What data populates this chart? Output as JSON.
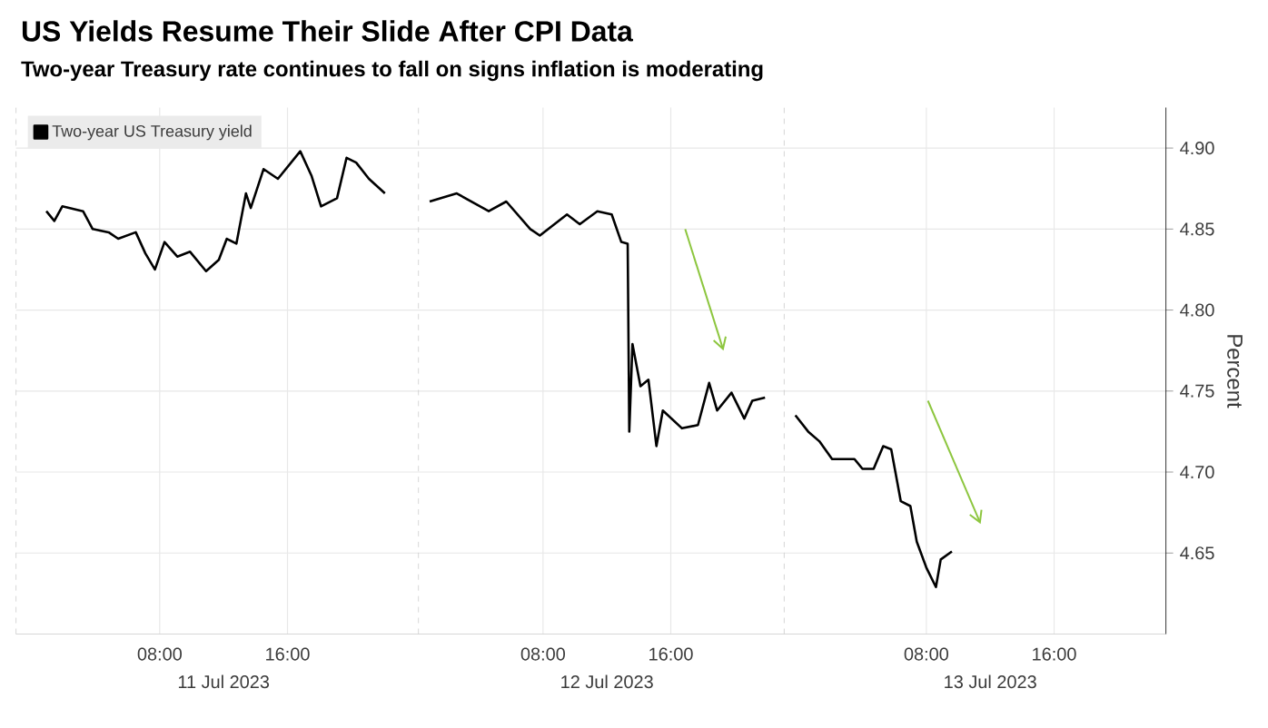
{
  "chart_data": {
    "type": "line",
    "title": "US Yields Resume Their Slide After CPI Data",
    "subtitle": "Two-year Treasury rate continues to fall on signs inflation is moderating",
    "ylabel": "Percent",
    "annotations": [
      "11 Jul 2023",
      "12 Jul 2023",
      "13 Jul 2023"
    ],
    "xlim": [
      "2023-07-10T23:00",
      "2023-07-13T23:00"
    ],
    "xticks": [
      {
        "value": "2023-07-11T08:00",
        "label": "08:00"
      },
      {
        "value": "2023-07-11T16:00",
        "label": "16:00"
      },
      {
        "value": "2023-07-12T08:00",
        "label": "08:00"
      },
      {
        "value": "2023-07-12T16:00",
        "label": "16:00"
      },
      {
        "value": "2023-07-13T08:00",
        "label": "08:00"
      },
      {
        "value": "2023-07-13T16:00",
        "label": "16:00"
      }
    ],
    "ylim": [
      4.6,
      4.925
    ],
    "yticks": [
      4.65,
      {
        "value": 4.7,
        "label": "4.70"
      },
      4.75,
      {
        "value": 4.8,
        "label": "4.80"
      },
      4.85,
      {
        "value": 4.9,
        "label": "4.90"
      }
    ],
    "grid": true,
    "legend": "top left",
    "ref_lines": [
      {
        "axis": "x",
        "value": "2023-07-10T23:00",
        "color": "#cccccc",
        "line_style": "dashed"
      },
      {
        "axis": "x",
        "value": "2023-07-12T00:12",
        "color": "#cccccc",
        "line_style": "dashed"
      },
      {
        "axis": "x",
        "value": "2023-07-12T23:06",
        "color": "#cccccc",
        "line_style": "dashed"
      }
    ],
    "series": [
      {
        "name": "Two-year US Treasury yield",
        "color": "#000000",
        "x": [
          "2023-07-11T00:54",
          "2023-07-11T01:24",
          "2023-07-11T01:54",
          "2023-07-11T03:12",
          "2023-07-11T03:48",
          "2023-07-11T04:48",
          "2023-07-11T05:24",
          "2023-07-11T06:30",
          "2023-07-11T07:06",
          "2023-07-11T07:42",
          "2023-07-11T08:18",
          "2023-07-11T09:06",
          "2023-07-11T09:54",
          "2023-07-11T10:54",
          "2023-07-11T11:42",
          "2023-07-11T12:12",
          "2023-07-11T12:48",
          "2023-07-11T13:24",
          "2023-07-11T13:42",
          "2023-07-11T14:30",
          "2023-07-11T15:24",
          "2023-07-11T16:48",
          "2023-07-11T17:30",
          "2023-07-11T18:06",
          "2023-07-11T19:06",
          "2023-07-11T19:42",
          "2023-07-11T20:18",
          "2023-07-11T21:06",
          "2023-07-11T22:06",
          "2023-07-11T23:00",
          "2023-07-12T00:54",
          "2023-07-12T02:36",
          "2023-07-12T04:36",
          "2023-07-12T05:42",
          "2023-07-12T07:12",
          "2023-07-12T07:48",
          "2023-07-12T09:30",
          "2023-07-12T10:18",
          "2023-07-12T11:24",
          "2023-07-12T12:18",
          "2023-07-12T12:54",
          "2023-07-12T13:18",
          "2023-07-12T13:24",
          "2023-07-12T13:36",
          "2023-07-12T14:06",
          "2023-07-12T14:36",
          "2023-07-12T15:06",
          "2023-07-12T15:30",
          "2023-07-12T16:42",
          "2023-07-12T17:42",
          "2023-07-12T18:24",
          "2023-07-12T18:54",
          "2023-07-12T19:48",
          "2023-07-12T20:36",
          "2023-07-12T21:06",
          "2023-07-12T21:54",
          "2023-07-12T23:00",
          "2023-07-12T23:48",
          "2023-07-13T00:36",
          "2023-07-13T01:18",
          "2023-07-13T02:06",
          "2023-07-13T03:30",
          "2023-07-13T04:00",
          "2023-07-13T04:42",
          "2023-07-13T05:18",
          "2023-07-13T05:48",
          "2023-07-13T06:24",
          "2023-07-13T07:00",
          "2023-07-13T07:24",
          "2023-07-13T08:00",
          "2023-07-13T08:36",
          "2023-07-13T08:54",
          "2023-07-13T09:36"
        ],
        "values": [
          4.861,
          4.855,
          4.864,
          4.861,
          4.85,
          4.848,
          4.844,
          4.848,
          4.835,
          4.825,
          4.842,
          4.833,
          4.836,
          4.824,
          4.831,
          4.844,
          4.841,
          4.872,
          4.863,
          4.887,
          4.881,
          4.898,
          4.883,
          4.864,
          4.869,
          4.894,
          4.891,
          4.881,
          4.872,
          null,
          4.867,
          4.872,
          4.861,
          4.867,
          4.85,
          4.846,
          4.859,
          4.853,
          4.861,
          4.859,
          4.842,
          4.841,
          4.725,
          4.779,
          4.753,
          4.757,
          4.716,
          4.738,
          4.727,
          4.729,
          4.755,
          4.738,
          4.749,
          4.733,
          4.744,
          4.746,
          null,
          4.735,
          4.725,
          4.719,
          4.708,
          4.708,
          4.702,
          4.702,
          4.716,
          4.714,
          4.682,
          4.679,
          4.657,
          4.641,
          4.629,
          4.646,
          4.651
        ]
      }
    ]
  }
}
